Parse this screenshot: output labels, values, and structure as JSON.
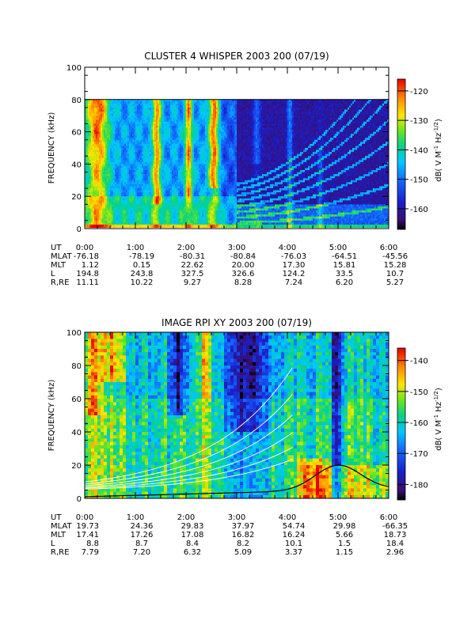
{
  "chart_data": [
    {
      "type": "heatmap",
      "title": "CLUSTER 4 WHISPER 2003 200 (07/19)",
      "ylabel": "FREQUENCY (kHz)",
      "y_ticks": [
        "0",
        "20",
        "40",
        "60",
        "80",
        "100"
      ],
      "ylim": [
        0,
        100
      ],
      "data_top_khz": 80,
      "colorbar": {
        "label_main": "dB( V M",
        "label_sup1": "-1",
        "label_mid": " Hz",
        "label_sup2": "-1/2",
        "label_end": ")",
        "ticks": [
          "-120",
          "-130",
          "-140",
          "-150",
          "-160"
        ],
        "range": [
          -167,
          -116
        ]
      },
      "ephemeris": {
        "rows": [
          {
            "label": "UT",
            "values": [
              "0:00",
              "1:00",
              "2:00",
              "3:00",
              "4:00",
              "5:00",
              "6:00"
            ]
          },
          {
            "label": "MLAT",
            "values": [
              "-76.18",
              "-78.19",
              "-80.31",
              "-80.84",
              "-76.03",
              "-64.51",
              "-45.56"
            ]
          },
          {
            "label": "MLT",
            "values": [
              "1.12",
              "0.15",
              "22.62",
              "20.00",
              "17.30",
              "15.81",
              "15.28"
            ]
          },
          {
            "label": "L",
            "values": [
              "194.8",
              "243.8",
              "327.5",
              "326.6",
              "124.2",
              "33.5",
              "10.7"
            ]
          },
          {
            "label": "R,RE",
            "values": [
              "11.11",
              "10.22",
              "9.27",
              "8.28",
              "7.24",
              "6.20",
              "5.27"
            ]
          }
        ]
      }
    },
    {
      "type": "heatmap",
      "title": "IMAGE RPI XY 2003 200 (07/19)",
      "ylabel": "FREQUENCY (kHz)",
      "y_ticks": [
        "0",
        "20",
        "40",
        "60",
        "80",
        "100"
      ],
      "ylim": [
        0,
        100
      ],
      "data_top_khz": 100,
      "colorbar": {
        "label_main": "dB( V M",
        "label_sup1": "-1",
        "label_mid": " Hz",
        "label_sup2": "-1/2",
        "label_end": ")",
        "ticks": [
          "-140",
          "-150",
          "-160",
          "-170",
          "-180"
        ],
        "range": [
          -185,
          -136
        ]
      },
      "ephemeris": {
        "rows": [
          {
            "label": "UT",
            "values": [
              "0:00",
              "1:00",
              "2:00",
              "3:00",
              "4:00",
              "5:00",
              "6:00"
            ]
          },
          {
            "label": "MLAT",
            "values": [
              "19.73",
              "24.36",
              "29.83",
              "37.97",
              "54.74",
              "29.98",
              "-66.35"
            ]
          },
          {
            "label": "MLT",
            "values": [
              "17.41",
              "17.26",
              "17.08",
              "16.82",
              "16.24",
              "5.66",
              "18.73"
            ]
          },
          {
            "label": "L",
            "values": [
              "8.8",
              "8.7",
              "8.4",
              "8.2",
              "10.1",
              "1.5",
              "18.4"
            ]
          },
          {
            "label": "R,RE",
            "values": [
              "7.79",
              "7.20",
              "6.32",
              "5.09",
              "3.37",
              "1.15",
              "2.96"
            ]
          }
        ]
      }
    }
  ]
}
